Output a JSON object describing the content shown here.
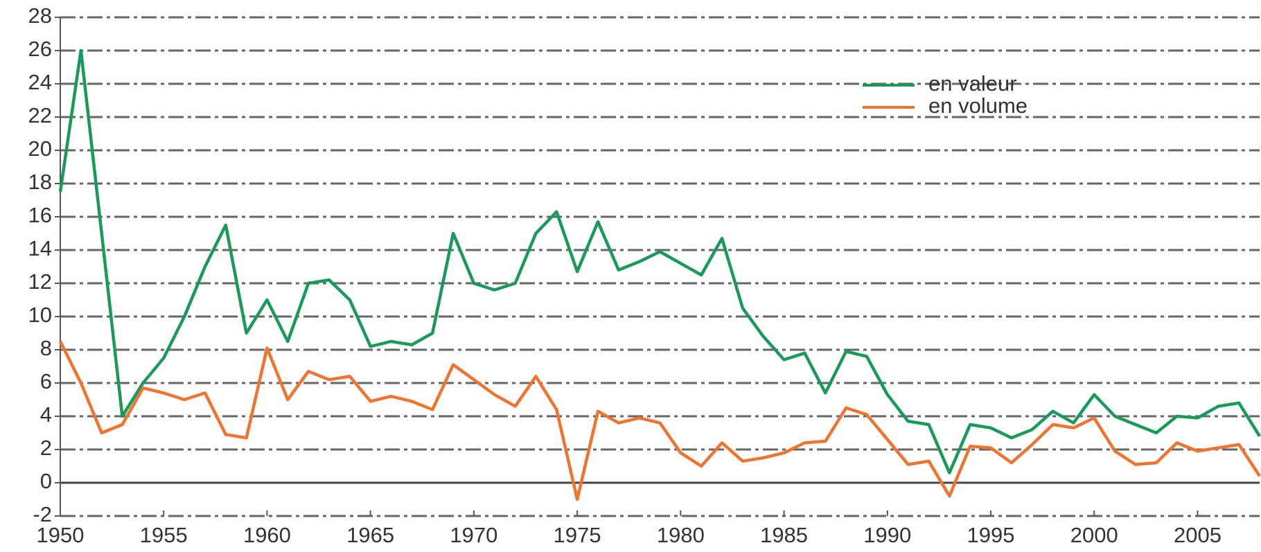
{
  "chart_data": {
    "type": "line",
    "x": [
      1950,
      1951,
      1952,
      1953,
      1954,
      1955,
      1956,
      1957,
      1958,
      1959,
      1960,
      1961,
      1962,
      1963,
      1964,
      1965,
      1966,
      1967,
      1968,
      1969,
      1970,
      1971,
      1972,
      1973,
      1974,
      1975,
      1976,
      1977,
      1978,
      1979,
      1980,
      1981,
      1982,
      1983,
      1984,
      1985,
      1986,
      1987,
      1988,
      1989,
      1990,
      1991,
      1992,
      1993,
      1994,
      1995,
      1996,
      1997,
      1998,
      1999,
      2000,
      2001,
      2002,
      2003,
      2004,
      2005,
      2006,
      2007,
      2008
    ],
    "series": [
      {
        "name": "en valeur",
        "color": "#1a9a5a",
        "values": [
          17.5,
          26,
          15,
          4,
          6,
          7.5,
          10,
          13,
          15.5,
          9,
          11,
          8.5,
          12,
          12.2,
          11,
          8.2,
          8.5,
          8.3,
          9,
          15,
          12,
          11.6,
          12,
          15,
          16.3,
          12.7,
          15.7,
          12.8,
          13.3,
          13.9,
          13.2,
          12.5,
          14.7,
          10.5,
          8.8,
          7.4,
          7.8,
          5.4,
          7.9,
          7.6,
          5.3,
          3.7,
          3.5,
          0.6,
          3.5,
          3.3,
          2.7,
          3.2,
          4.3,
          3.6,
          5.3,
          4,
          3.5,
          3,
          4,
          3.9,
          4.6,
          4.8,
          2.8
        ]
      },
      {
        "name": "en volume",
        "color": "#ee7430",
        "values": [
          8.5,
          6,
          3,
          3.5,
          5.7,
          5.4,
          5,
          5.4,
          2.9,
          2.7,
          8.1,
          5,
          6.7,
          6.2,
          6.4,
          4.9,
          5.2,
          4.9,
          4.4,
          7.1,
          6.2,
          5.3,
          4.6,
          6.4,
          4.4,
          -1,
          4.3,
          3.6,
          3.9,
          3.6,
          1.8,
          1,
          2.4,
          1.3,
          1.5,
          1.8,
          2.4,
          2.5,
          4.5,
          4.1,
          2.6,
          1.1,
          1.3,
          -0.8,
          2.2,
          2.1,
          1.2,
          2.3,
          3.5,
          3.3,
          3.9,
          1.9,
          1.1,
          1.2,
          2.4,
          1.9,
          2.1,
          2.3,
          0.4
        ]
      }
    ],
    "xlim": [
      1950,
      2008
    ],
    "xticks": [
      1950,
      1955,
      1960,
      1965,
      1970,
      1975,
      1980,
      1985,
      1990,
      1995,
      2000,
      2005
    ],
    "ylim": [
      -2,
      28
    ],
    "yticks": [
      -2,
      0,
      2,
      4,
      6,
      8,
      10,
      12,
      14,
      16,
      18,
      20,
      22,
      24,
      26,
      28
    ],
    "grid": true,
    "legend": "upper right"
  }
}
